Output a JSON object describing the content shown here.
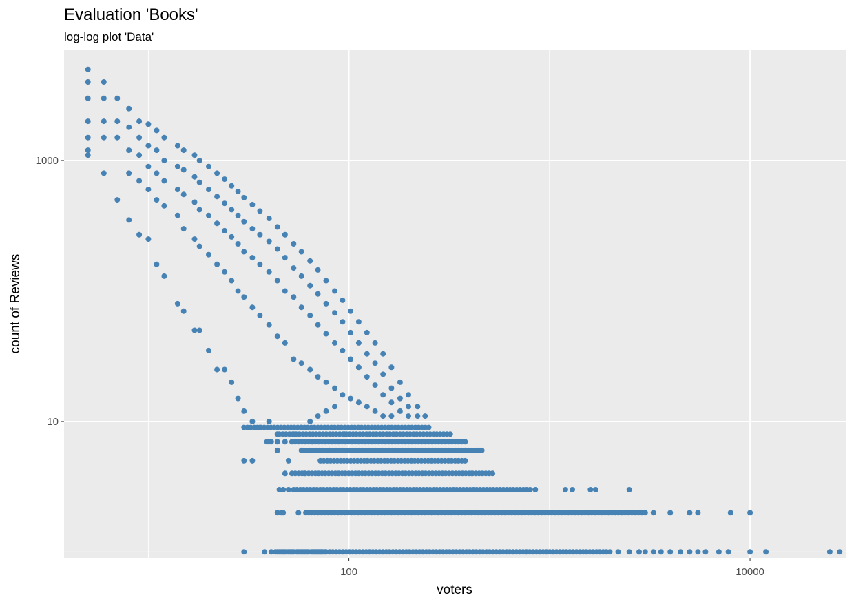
{
  "chart_data": {
    "type": "scatter",
    "title": "Evaluation 'Books'",
    "subtitle": "log-log plot 'Data'",
    "xlabel": "voters",
    "ylabel": "count of Reviews",
    "x_scale": "log10",
    "y_scale": "log10",
    "xlim": [
      3.8,
      30000
    ],
    "ylim": [
      0.9,
      7000
    ],
    "x_ticks": [
      100,
      10000
    ],
    "x_tick_labels": [
      "100",
      "10000"
    ],
    "y_ticks": [
      10,
      1000
    ],
    "y_tick_labels": [
      "10",
      "1000"
    ],
    "grid": true,
    "colors": {
      "panel": "#EBEBEB",
      "grid": "#FFFFFF",
      "point": "#4682B4"
    },
    "series": [
      {
        "band_points": [
          [
            5,
            5000
          ],
          [
            5,
            4000
          ],
          [
            5,
            3000
          ],
          [
            5,
            2000
          ],
          [
            5,
            1500
          ],
          [
            5,
            1200
          ],
          [
            5,
            1100
          ],
          [
            6,
            4000
          ],
          [
            6,
            3000
          ],
          [
            6,
            2000
          ],
          [
            6,
            1500
          ],
          [
            6,
            800
          ],
          [
            7,
            3000
          ],
          [
            7,
            2000
          ],
          [
            7,
            1500
          ],
          [
            7,
            500
          ],
          [
            8,
            2500
          ],
          [
            8,
            1800
          ],
          [
            8,
            1200
          ],
          [
            8,
            800
          ],
          [
            8,
            350
          ],
          [
            9,
            2000
          ],
          [
            9,
            1500
          ],
          [
            9,
            1100
          ],
          [
            9,
            700
          ],
          [
            9,
            270
          ],
          [
            10,
            1900
          ],
          [
            10,
            1300
          ],
          [
            10,
            900
          ],
          [
            10,
            600
          ],
          [
            10,
            250
          ],
          [
            11,
            1700
          ],
          [
            11,
            1200
          ],
          [
            11,
            800
          ],
          [
            11,
            500
          ],
          [
            11,
            160
          ],
          [
            12,
            1500
          ],
          [
            12,
            1000
          ],
          [
            12,
            700
          ],
          [
            12,
            450
          ],
          [
            12,
            130
          ],
          [
            14,
            1300
          ],
          [
            14,
            900
          ],
          [
            14,
            600
          ],
          [
            14,
            380
          ],
          [
            14,
            80
          ],
          [
            15,
            1200
          ],
          [
            15,
            850
          ],
          [
            15,
            550
          ],
          [
            15,
            300
          ],
          [
            15,
            70
          ],
          [
            17,
            1100
          ],
          [
            17,
            750
          ],
          [
            17,
            480
          ],
          [
            17,
            250
          ],
          [
            17,
            50
          ],
          [
            18,
            1000
          ],
          [
            18,
            680
          ],
          [
            18,
            420
          ],
          [
            18,
            220
          ],
          [
            18,
            50
          ],
          [
            20,
            900
          ],
          [
            20,
            600
          ],
          [
            20,
            380
          ],
          [
            20,
            190
          ],
          [
            20,
            35
          ],
          [
            22,
            800
          ],
          [
            22,
            530
          ],
          [
            22,
            330
          ],
          [
            22,
            160
          ],
          [
            22,
            25
          ],
          [
            24,
            720
          ],
          [
            24,
            470
          ],
          [
            24,
            290
          ],
          [
            24,
            140
          ],
          [
            24,
            25
          ],
          [
            26,
            640
          ],
          [
            26,
            420
          ],
          [
            26,
            260
          ],
          [
            26,
            120
          ],
          [
            26,
            20
          ],
          [
            28,
            580
          ],
          [
            28,
            380
          ],
          [
            28,
            230
          ],
          [
            28,
            100
          ],
          [
            28,
            15
          ],
          [
            30,
            520
          ],
          [
            30,
            340
          ],
          [
            30,
            200
          ],
          [
            30,
            90
          ],
          [
            30,
            12
          ],
          [
            33,
            460
          ],
          [
            33,
            300
          ],
          [
            33,
            180
          ],
          [
            33,
            75
          ],
          [
            33,
            10
          ],
          [
            36,
            410
          ],
          [
            36,
            270
          ],
          [
            36,
            160
          ],
          [
            36,
            65
          ],
          [
            36,
            9
          ],
          [
            40,
            360
          ],
          [
            40,
            240
          ],
          [
            40,
            140
          ],
          [
            40,
            55
          ],
          [
            40,
            7
          ],
          [
            44,
            310
          ],
          [
            44,
            210
          ],
          [
            44,
            120
          ],
          [
            44,
            45
          ],
          [
            44,
            8
          ],
          [
            48,
            270
          ],
          [
            48,
            180
          ],
          [
            48,
            100
          ],
          [
            48,
            40
          ],
          [
            48,
            7
          ],
          [
            53,
            230
          ],
          [
            53,
            150
          ],
          [
            53,
            90
          ],
          [
            53,
            30
          ],
          [
            53,
            8
          ],
          [
            58,
            200
          ],
          [
            58,
            130
          ],
          [
            58,
            75
          ],
          [
            58,
            28
          ],
          [
            58,
            9
          ],
          [
            64,
            170
          ],
          [
            64,
            110
          ],
          [
            64,
            65
          ],
          [
            64,
            25
          ],
          [
            64,
            10
          ],
          [
            70,
            145
          ],
          [
            70,
            95
          ],
          [
            70,
            55
          ],
          [
            70,
            22
          ],
          [
            70,
            11
          ],
          [
            77,
            120
          ],
          [
            77,
            80
          ],
          [
            77,
            47
          ],
          [
            77,
            20
          ],
          [
            77,
            12
          ],
          [
            85,
            100
          ],
          [
            85,
            68
          ],
          [
            85,
            40
          ],
          [
            85,
            18
          ],
          [
            85,
            13
          ],
          [
            93,
            85
          ],
          [
            93,
            58
          ],
          [
            93,
            35
          ],
          [
            93,
            16
          ],
          [
            102,
            70
          ],
          [
            102,
            48
          ],
          [
            102,
            30
          ],
          [
            102,
            15
          ],
          [
            112,
            58
          ],
          [
            112,
            40
          ],
          [
            112,
            26
          ],
          [
            112,
            14
          ],
          [
            123,
            48
          ],
          [
            123,
            33
          ],
          [
            123,
            22
          ],
          [
            123,
            13
          ],
          [
            135,
            40
          ],
          [
            135,
            28
          ],
          [
            135,
            19
          ],
          [
            135,
            12
          ],
          [
            148,
            33
          ],
          [
            148,
            23
          ],
          [
            148,
            16
          ],
          [
            148,
            11
          ],
          [
            163,
            26
          ],
          [
            163,
            18
          ],
          [
            163,
            14
          ],
          [
            163,
            11
          ],
          [
            180,
            20
          ],
          [
            180,
            15
          ],
          [
            180,
            12
          ],
          [
            198,
            16
          ],
          [
            198,
            13
          ],
          [
            198,
            11
          ],
          [
            220,
            13
          ],
          [
            220,
            11
          ],
          [
            240,
            11
          ]
        ],
        "low_points": [
          [
            40,
            10
          ],
          [
            44,
            6
          ],
          [
            50,
            5
          ],
          [
            58,
            6
          ],
          [
            60,
            4
          ],
          [
            66,
            7
          ],
          [
            72,
            5
          ],
          [
            80,
            6
          ],
          [
            95,
            8
          ]
        ],
        "rows": [
          {
            "y": 9,
            "x_from": 30,
            "x_to": 250,
            "extras": []
          },
          {
            "y": 8,
            "x_from": 45,
            "x_to": 320,
            "extras": []
          },
          {
            "y": 7,
            "x_from": 52,
            "x_to": 380,
            "extras": [
              39,
              41,
              44
            ]
          },
          {
            "y": 6,
            "x_from": 59,
            "x_to": 460,
            "extras": [
              380
            ]
          },
          {
            "y": 5,
            "x_from": 75,
            "x_to": 380,
            "extras": [
              30,
              33
            ]
          },
          {
            "y": 4,
            "x_from": 52,
            "x_to": 520,
            "extras": [
              48,
              410
            ]
          },
          {
            "y": 3,
            "x_from": 53,
            "x_to": 800,
            "extras": [
              45,
              47,
              47,
              50,
              850,
              1200,
              1300,
              1600,
              1700,
              2500
            ]
          },
          {
            "y": 2,
            "x_from": 65,
            "x_to": 3000,
            "extras": [
              44,
              46,
              47,
              56,
              61,
              63,
              3300,
              4000,
              5000,
              5500,
              8000,
              10000
            ]
          },
          {
            "y": 1,
            "x_from": 77,
            "x_to": 2000,
            "extras": [
              30,
              38,
              41,
              43,
              44,
              45,
              46,
              47,
              48,
              49,
              50,
              51,
              52,
              53,
              55,
              56,
              57,
              58,
              59,
              60,
              61,
              62,
              63,
              65,
              66,
              67,
              68,
              69,
              70,
              71,
              72,
              73,
              74,
              76,
              2200,
              2500,
              2800,
              3000,
              3300,
              3600,
              4000,
              4500,
              5000,
              5500,
              6000,
              7000,
              7800,
              10000,
              12000,
              25000,
              28000
            ]
          }
        ]
      }
    ]
  }
}
